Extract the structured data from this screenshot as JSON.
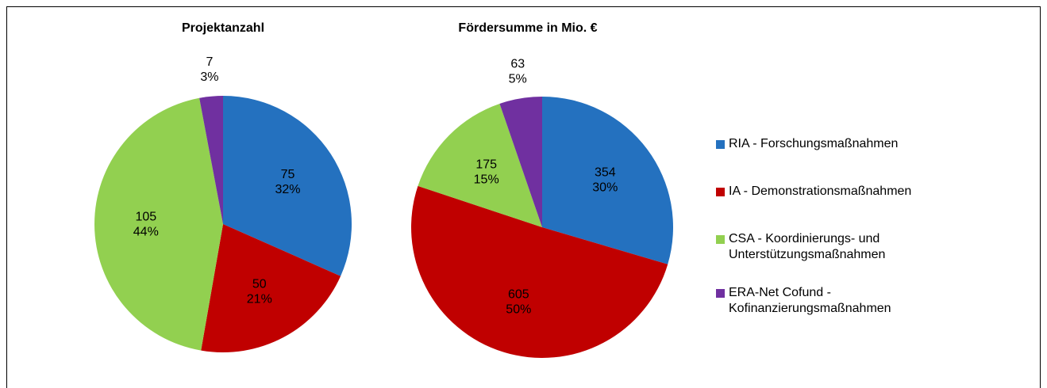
{
  "chart_data": [
    {
      "type": "pie",
      "title": "Projektanzahl",
      "categories": [
        "RIA - Forschungsmaßnahmen",
        "IA - Demonstrationsmaßnahmen",
        "CSA - Koordinierungs- und Unterstützungsmaßnahmen",
        "ERA-Net Cofund - Kofinanzierungsmaßnahmen"
      ],
      "values": [
        75,
        50,
        105,
        7
      ],
      "percent_labels": [
        "32%",
        "21%",
        "44%",
        "3%"
      ],
      "colors": [
        "#2471bf",
        "#c00000",
        "#92d050",
        "#7030a0"
      ]
    },
    {
      "type": "pie",
      "title": "Fördersumme in Mio. €",
      "categories": [
        "RIA - Forschungsmaßnahmen",
        "IA - Demonstrationsmaßnahmen",
        "CSA - Koordinierungs- und Unterstützungsmaßnahmen",
        "ERA-Net Cofund - Kofinanzierungsmaßnahmen"
      ],
      "values": [
        354,
        605,
        175,
        63
      ],
      "percent_labels": [
        "30%",
        "50%",
        "15%",
        "5%"
      ],
      "colors": [
        "#2471bf",
        "#c00000",
        "#92d050",
        "#7030a0"
      ]
    }
  ]
}
